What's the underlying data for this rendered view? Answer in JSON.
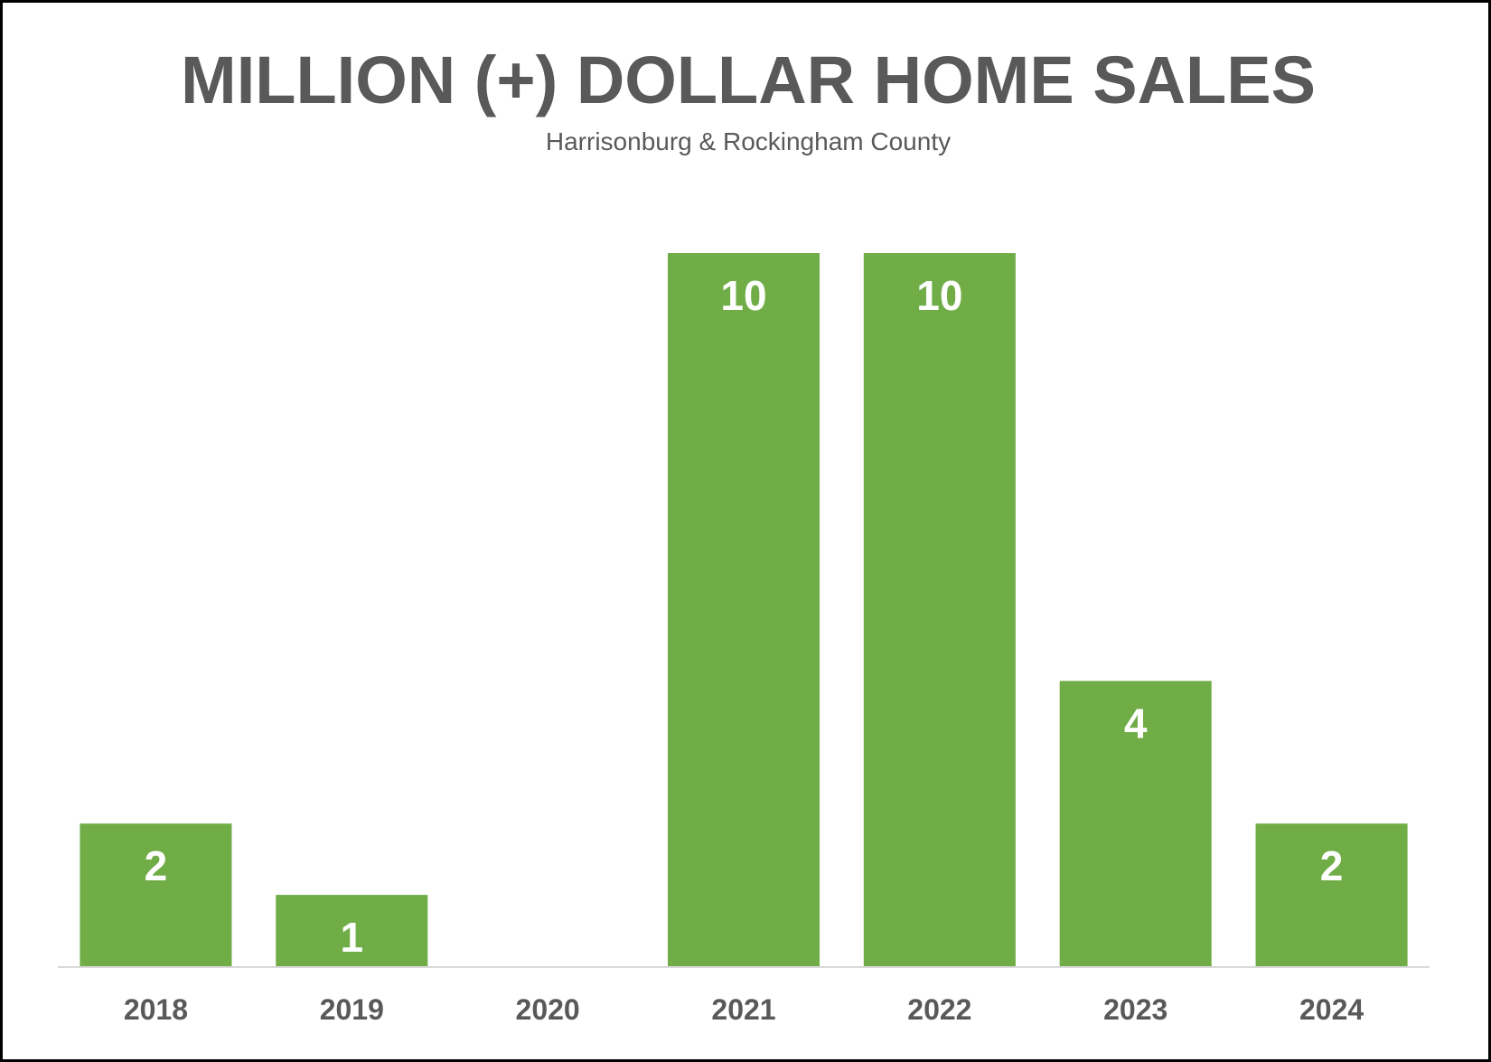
{
  "chart_data": {
    "type": "bar",
    "title": "MILLION (+) DOLLAR HOME SALES",
    "subtitle": "Harrisonburg & Rockingham County",
    "categories": [
      "2018",
      "2019",
      "2020",
      "2021",
      "2022",
      "2023",
      "2024"
    ],
    "values": [
      2,
      1,
      0,
      10,
      10,
      4,
      2
    ],
    "data_labels": [
      "2",
      "1",
      "",
      "10",
      "10",
      "4",
      "2"
    ],
    "xlabel": "",
    "ylabel": "",
    "ylim": [
      0,
      10
    ],
    "grid": false,
    "legend": "none",
    "colors": {
      "bar": "#70ad47",
      "data_label": "#ffffff",
      "text": "#595959",
      "axis": "#d9d9d9",
      "border": "#000000"
    }
  }
}
